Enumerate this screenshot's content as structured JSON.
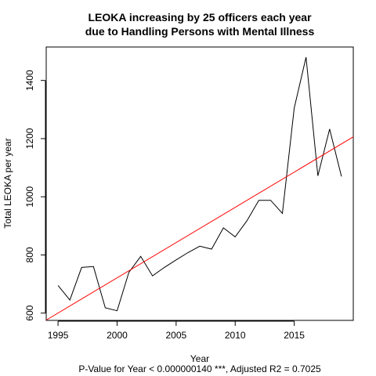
{
  "chart_data": {
    "type": "line",
    "title_lines": [
      "LEOKA increasing by 25 officers each year",
      "due to Handling Persons with Mental Illness"
    ],
    "xlabel": "Year",
    "ylabel": "Total LEOKA per year",
    "subtitle": "P-Value for Year < 0.000000140 ***, Adjusted R2 = 0.7025",
    "xlim": [
      1994,
      2020
    ],
    "ylim": [
      575,
      1515
    ],
    "x_ticks": [
      1995,
      2000,
      2005,
      2010,
      2015
    ],
    "y_ticks": [
      600,
      800,
      1000,
      1200,
      1400
    ],
    "series": [
      {
        "color": "#000000",
        "x": [
          1995,
          1996,
          1997,
          1998,
          1999,
          2000,
          2001,
          2002,
          2003,
          2004,
          2005,
          2006,
          2007,
          2008,
          2009,
          2010,
          2011,
          2012,
          2013,
          2014,
          2015,
          2016,
          2017,
          2018,
          2019
        ],
        "y": [
          695,
          645,
          757,
          760,
          618,
          608,
          740,
          795,
          728,
          757,
          783,
          808,
          830,
          820,
          893,
          862,
          918,
          988,
          988,
          943,
          1305,
          1480,
          1072,
          1233,
          1070
        ]
      }
    ],
    "fit_line": {
      "color": "#ff0000",
      "x": [
        1994,
        2020
      ],
      "y": [
        576,
        1206
      ]
    }
  }
}
